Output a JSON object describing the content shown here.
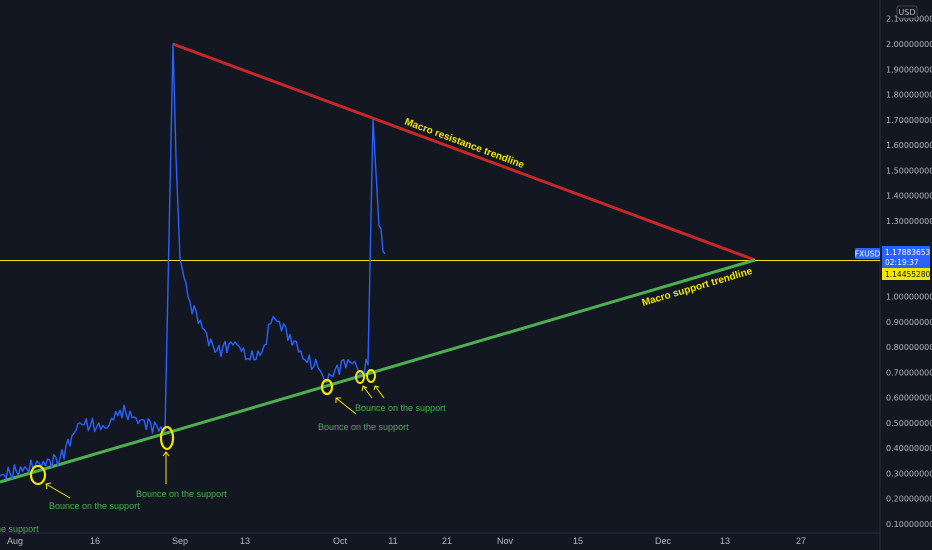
{
  "chart_data": {
    "type": "line",
    "title": "",
    "xlabel": "",
    "ylabel": "",
    "ylim": [
      0.07,
      2.12
    ],
    "y_axis_unit": "USD",
    "y_ticks": [
      "0.10000000",
      "0.20000000",
      "0.30000000",
      "0.40000000",
      "0.50000000",
      "0.60000000",
      "0.70000000",
      "0.80000000",
      "0.90000000",
      "1.00000000",
      "1.10000000",
      "1.20000000",
      "1.30000000",
      "1.40000000",
      "1.50000000",
      "1.60000000",
      "1.70000000",
      "1.80000000",
      "1.90000000",
      "2.00000000",
      "2.10000000"
    ],
    "x_ticks": [
      "Aug",
      "16",
      "Sep",
      "13",
      "Oct",
      "11",
      "21",
      "Nov",
      "15",
      "Dec",
      "13",
      "27"
    ],
    "series": [
      {
        "color": "#2962ff",
        "x": [
          "Aug",
          "Aug 5",
          "Aug 10",
          "Aug 15",
          "Aug 20",
          "Aug 24",
          "Aug 28",
          "Aug 31",
          "Sep 1",
          "Sep 2",
          "Sep 3",
          "Sep 5",
          "Sep 8",
          "Sep 11",
          "Sep 14",
          "Sep 17",
          "Sep 20",
          "Sep 23",
          "Sep 26",
          "Sep 29",
          "Oct 1",
          "Oct 2",
          "Oct 4",
          "Oct 5",
          "Oct 6",
          "Oct 7",
          "Oct 8",
          "Oct 9",
          "Oct 10"
        ],
        "values": [
          0.29,
          0.33,
          0.36,
          0.5,
          0.48,
          0.55,
          0.51,
          0.47,
          2.0,
          1.55,
          1.15,
          0.98,
          0.78,
          0.82,
          0.75,
          0.78,
          0.92,
          0.85,
          0.75,
          0.72,
          0.66,
          0.71,
          0.75,
          0.72,
          0.7,
          0.73,
          1.7,
          1.28,
          1.17
        ]
      }
    ],
    "current_price": {
      "symbol": "FXUSD",
      "price": "1.17883653",
      "countdown": "02:19:37",
      "line_value": "1.14455280"
    },
    "trendlines": [
      {
        "name": "Macro resistance trendline",
        "color": "#c62828",
        "from": {
          "x": "Sep 1",
          "y": 2.0
        },
        "to": {
          "x": "Dec 17",
          "y": 1.155
        }
      },
      {
        "name": "Macro support trendline",
        "color": "#4caf50",
        "from": {
          "x": "Aug",
          "y": 0.26
        },
        "to": {
          "x": "Dec 17",
          "y": 1.155
        }
      }
    ],
    "annotations": [
      {
        "text": "Bounce on the support",
        "x": "Aug",
        "y": 0.07
      },
      {
        "text": "Bounce on the support",
        "x": "Aug 5",
        "y": 0.28
      },
      {
        "text": "Bounce on the support",
        "x": "Aug 31",
        "y": 0.4
      },
      {
        "text": "Bounce on the support",
        "x": "Oct 1",
        "y": 0.6
      },
      {
        "text": "Bounce on the support",
        "x": "Oct 7",
        "y": 0.6
      }
    ],
    "grid": false
  }
}
